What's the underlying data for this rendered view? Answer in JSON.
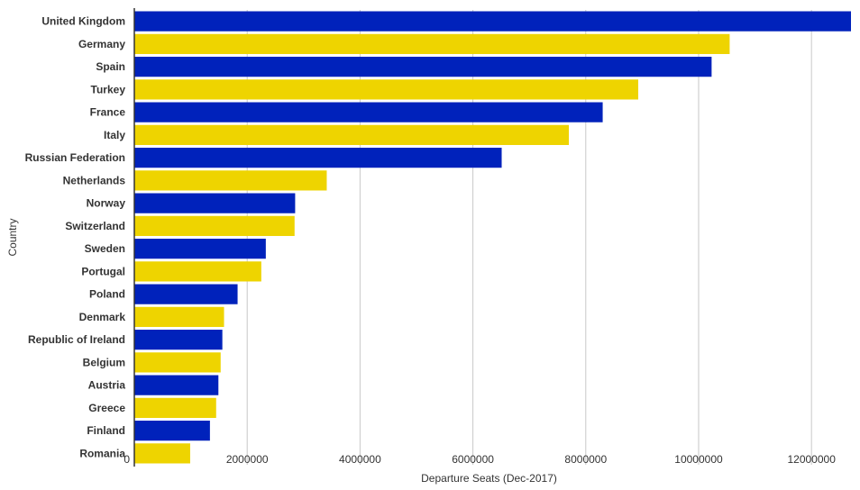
{
  "chart_data": {
    "type": "bar",
    "orientation": "horizontal",
    "title": "",
    "xlabel": "Departure Seats (Dec-2017)",
    "ylabel": "Country",
    "xlim": [
      0,
      12700000
    ],
    "xticks": [
      0,
      2000000,
      4000000,
      6000000,
      8000000,
      10000000,
      12000000
    ],
    "xtick_labels": [
      "0",
      "2000000",
      "4000000",
      "6000000",
      "8000000",
      "10000000",
      "12000000"
    ],
    "grid": "vertical",
    "legend": "none",
    "categories": [
      "United Kingdom",
      "Germany",
      "Spain",
      "Turkey",
      "France",
      "Italy",
      "Russian Federation",
      "Netherlands",
      "Norway",
      "Switzerland",
      "Sweden",
      "Portugal",
      "Poland",
      "Denmark",
      "Republic of Ireland",
      "Belgium",
      "Austria",
      "Greece",
      "Finland",
      "Romania"
    ],
    "values": [
      12700000,
      10550000,
      10230000,
      8930000,
      8300000,
      7700000,
      6510000,
      3410000,
      2850000,
      2840000,
      2330000,
      2250000,
      1830000,
      1590000,
      1560000,
      1530000,
      1490000,
      1450000,
      1340000,
      990000
    ],
    "colors": [
      "#0022bb",
      "#eed400"
    ]
  }
}
